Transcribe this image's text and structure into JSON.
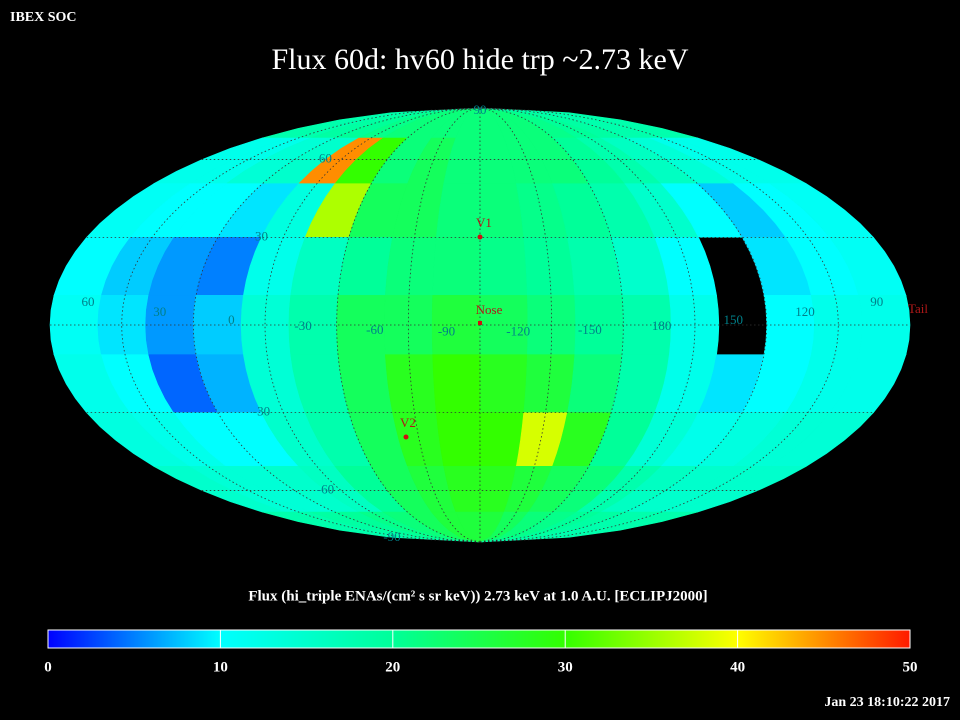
{
  "chart_data": {
    "type": "heatmap",
    "header": "IBEX SOC",
    "title": "Flux   60d: hv60 hide trp ~2.73 keV",
    "colorbar_label": "Flux (hi_triple ENAs/(cm² s sr keV))  2.73 keV at 1.0 A.U. [ECLIPJ2000]",
    "timestamp": "Jan 23 18:10:22 2017",
    "xlim": [
      -180,
      180
    ],
    "ylim": [
      -90,
      90
    ],
    "z": [
      [
        18,
        18,
        19,
        20,
        21,
        22,
        22,
        22,
        22,
        22,
        22,
        22,
        21,
        20,
        19,
        18,
        18,
        18
      ],
      [
        12,
        12,
        14,
        15,
        45,
        30,
        22,
        24,
        22,
        22,
        22,
        22,
        20,
        18,
        16,
        14,
        12,
        12
      ],
      [
        11,
        10,
        10,
        9,
        13,
        36,
        24,
        24,
        22,
        22,
        21,
        20,
        18,
        15,
        10,
        8,
        10,
        11
      ],
      [
        10,
        8,
        6,
        5,
        12,
        16,
        20,
        22,
        22,
        21,
        20,
        18,
        15,
        10,
        null,
        9,
        10,
        11
      ],
      [
        11,
        9,
        6,
        8,
        14,
        18,
        24,
        24,
        26,
        24,
        22,
        20,
        18,
        12,
        null,
        10,
        12,
        12
      ],
      [
        12,
        10,
        4,
        7,
        14,
        18,
        24,
        28,
        30,
        28,
        26,
        22,
        18,
        12,
        9,
        10,
        12,
        12
      ],
      [
        13,
        12,
        10,
        10,
        15,
        18,
        24,
        28,
        30,
        30,
        38,
        28,
        20,
        14,
        12,
        13,
        14,
        14
      ],
      [
        15,
        14,
        14,
        15,
        16,
        20,
        24,
        26,
        28,
        28,
        26,
        24,
        22,
        18,
        16,
        15,
        15,
        15
      ],
      [
        18,
        18,
        19,
        20,
        21,
        22,
        24,
        26,
        26,
        26,
        24,
        22,
        21,
        20,
        19,
        18,
        18,
        18
      ]
    ],
    "colormap": [
      "#0000ff",
      "#00ffff",
      "#00ff99",
      "#33ff00",
      "#ffff00",
      "#ff1a00"
    ],
    "clim": [
      0,
      50
    ],
    "cticks": [
      0,
      10,
      20,
      30,
      40,
      50
    ],
    "lon_labels": [
      60,
      30,
      0,
      -30,
      -60,
      -90,
      -120,
      -150,
      180,
      150,
      120,
      90
    ],
    "yticks": [
      90,
      60,
      30,
      -30,
      -60,
      -90
    ],
    "markers": [
      "V1",
      "Nose",
      "V2",
      "Tail"
    ],
    "grid": true
  }
}
